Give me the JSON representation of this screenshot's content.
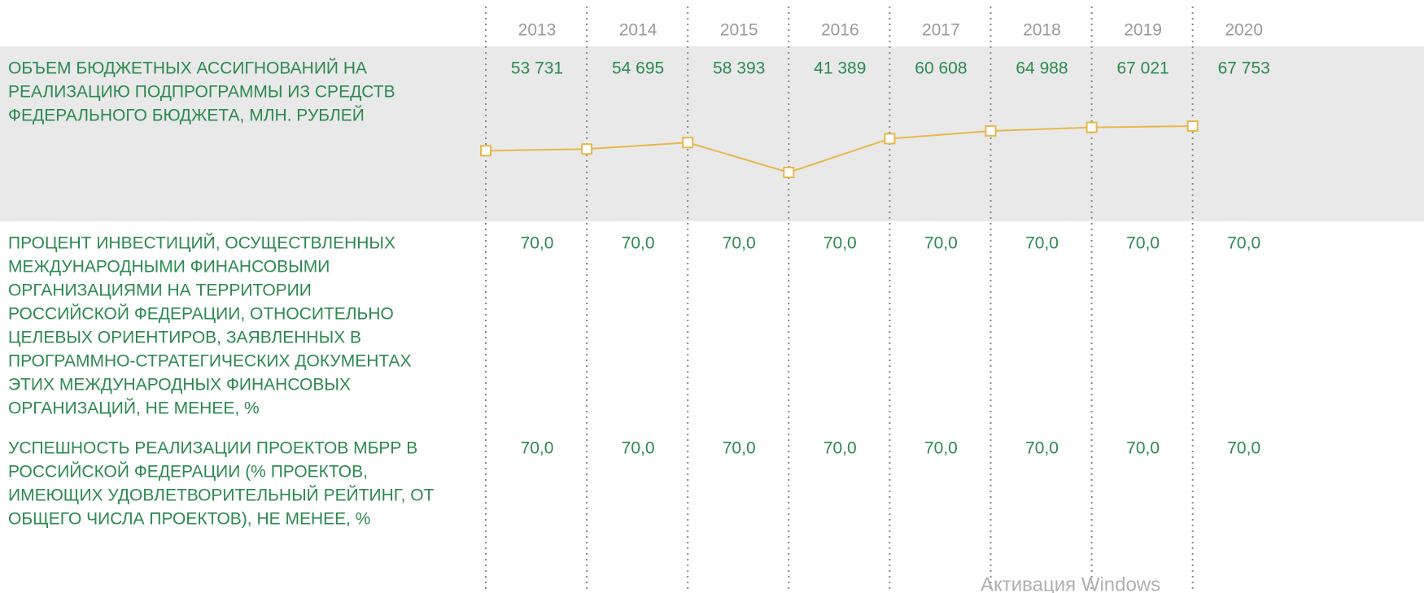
{
  "years": [
    "2013",
    "2014",
    "2015",
    "2016",
    "2017",
    "2018",
    "2019",
    "2020"
  ],
  "rows": [
    {
      "label": [
        "ОБЪЕМ БЮДЖЕТНЫХ АССИГНОВАНИЙ НА",
        "РЕАЛИЗАЦИЮ ПОДПРОГРАММЫ ИЗ СРЕДСТВ",
        "ФЕДЕРАЛЬНОГО БЮДЖЕТА, МЛН. РУБЛЕЙ"
      ],
      "values": [
        53731,
        54695,
        58393,
        41389,
        60608,
        64988,
        67021,
        67753
      ],
      "value_labels": [
        "53 731",
        "54 695",
        "58 393",
        "41 389",
        "60 608",
        "64 988",
        "67 021",
        "67 753"
      ],
      "color": "#e8b84c"
    },
    {
      "label": [
        "ПРОЦЕНТ ИНВЕСТИЦИЙ, ОСУЩЕСТВЛЕННЫХ",
        "МЕЖДУНАРОДНЫМИ ФИНАНСОВЫМИ",
        "ОРГАНИЗАЦИЯМИ НА ТЕРРИТОРИИ",
        "РОССИЙСКОЙ ФЕДЕРАЦИИ, ОТНОСИТЕЛЬНО",
        "ЦЕЛЕВЫХ ОРИЕНТИРОВ, ЗАЯВЛЕННЫХ В",
        "ПРОГРАММНО-СТРАТЕГИЧЕСКИХ ДОКУМЕНТАХ",
        "ЭТИХ МЕЖДУНАРОДНЫХ ФИНАНСОВЫХ",
        "ОРГАНИЗАЦИЙ, НЕ МЕНЕЕ, %"
      ],
      "values": [
        "70,0",
        "70,0",
        "70,0",
        "70,0",
        "70,0",
        "70,0",
        "70,0",
        "70,0"
      ]
    },
    {
      "label": [
        "УСПЕШНОСТЬ РЕАЛИЗАЦИИ ПРОЕКТОВ МБРР В",
        "РОССИЙСКОЙ ФЕДЕРАЦИИ (% ПРОЕКТОВ,",
        "ИМЕЮЩИХ УДОВЛЕТВОРИТЕЛЬНЫЙ РЕЙТИНГ, ОТ",
        "ОБЩЕГО ЧИСЛА ПРОЕКТОВ), НЕ МЕНЕЕ, %"
      ],
      "values": [
        "70,0",
        "70,0",
        "70,0",
        "70,0",
        "70,0",
        "70,0",
        "70,0",
        "70,0"
      ]
    }
  ],
  "watermark": "Активация Windows"
}
